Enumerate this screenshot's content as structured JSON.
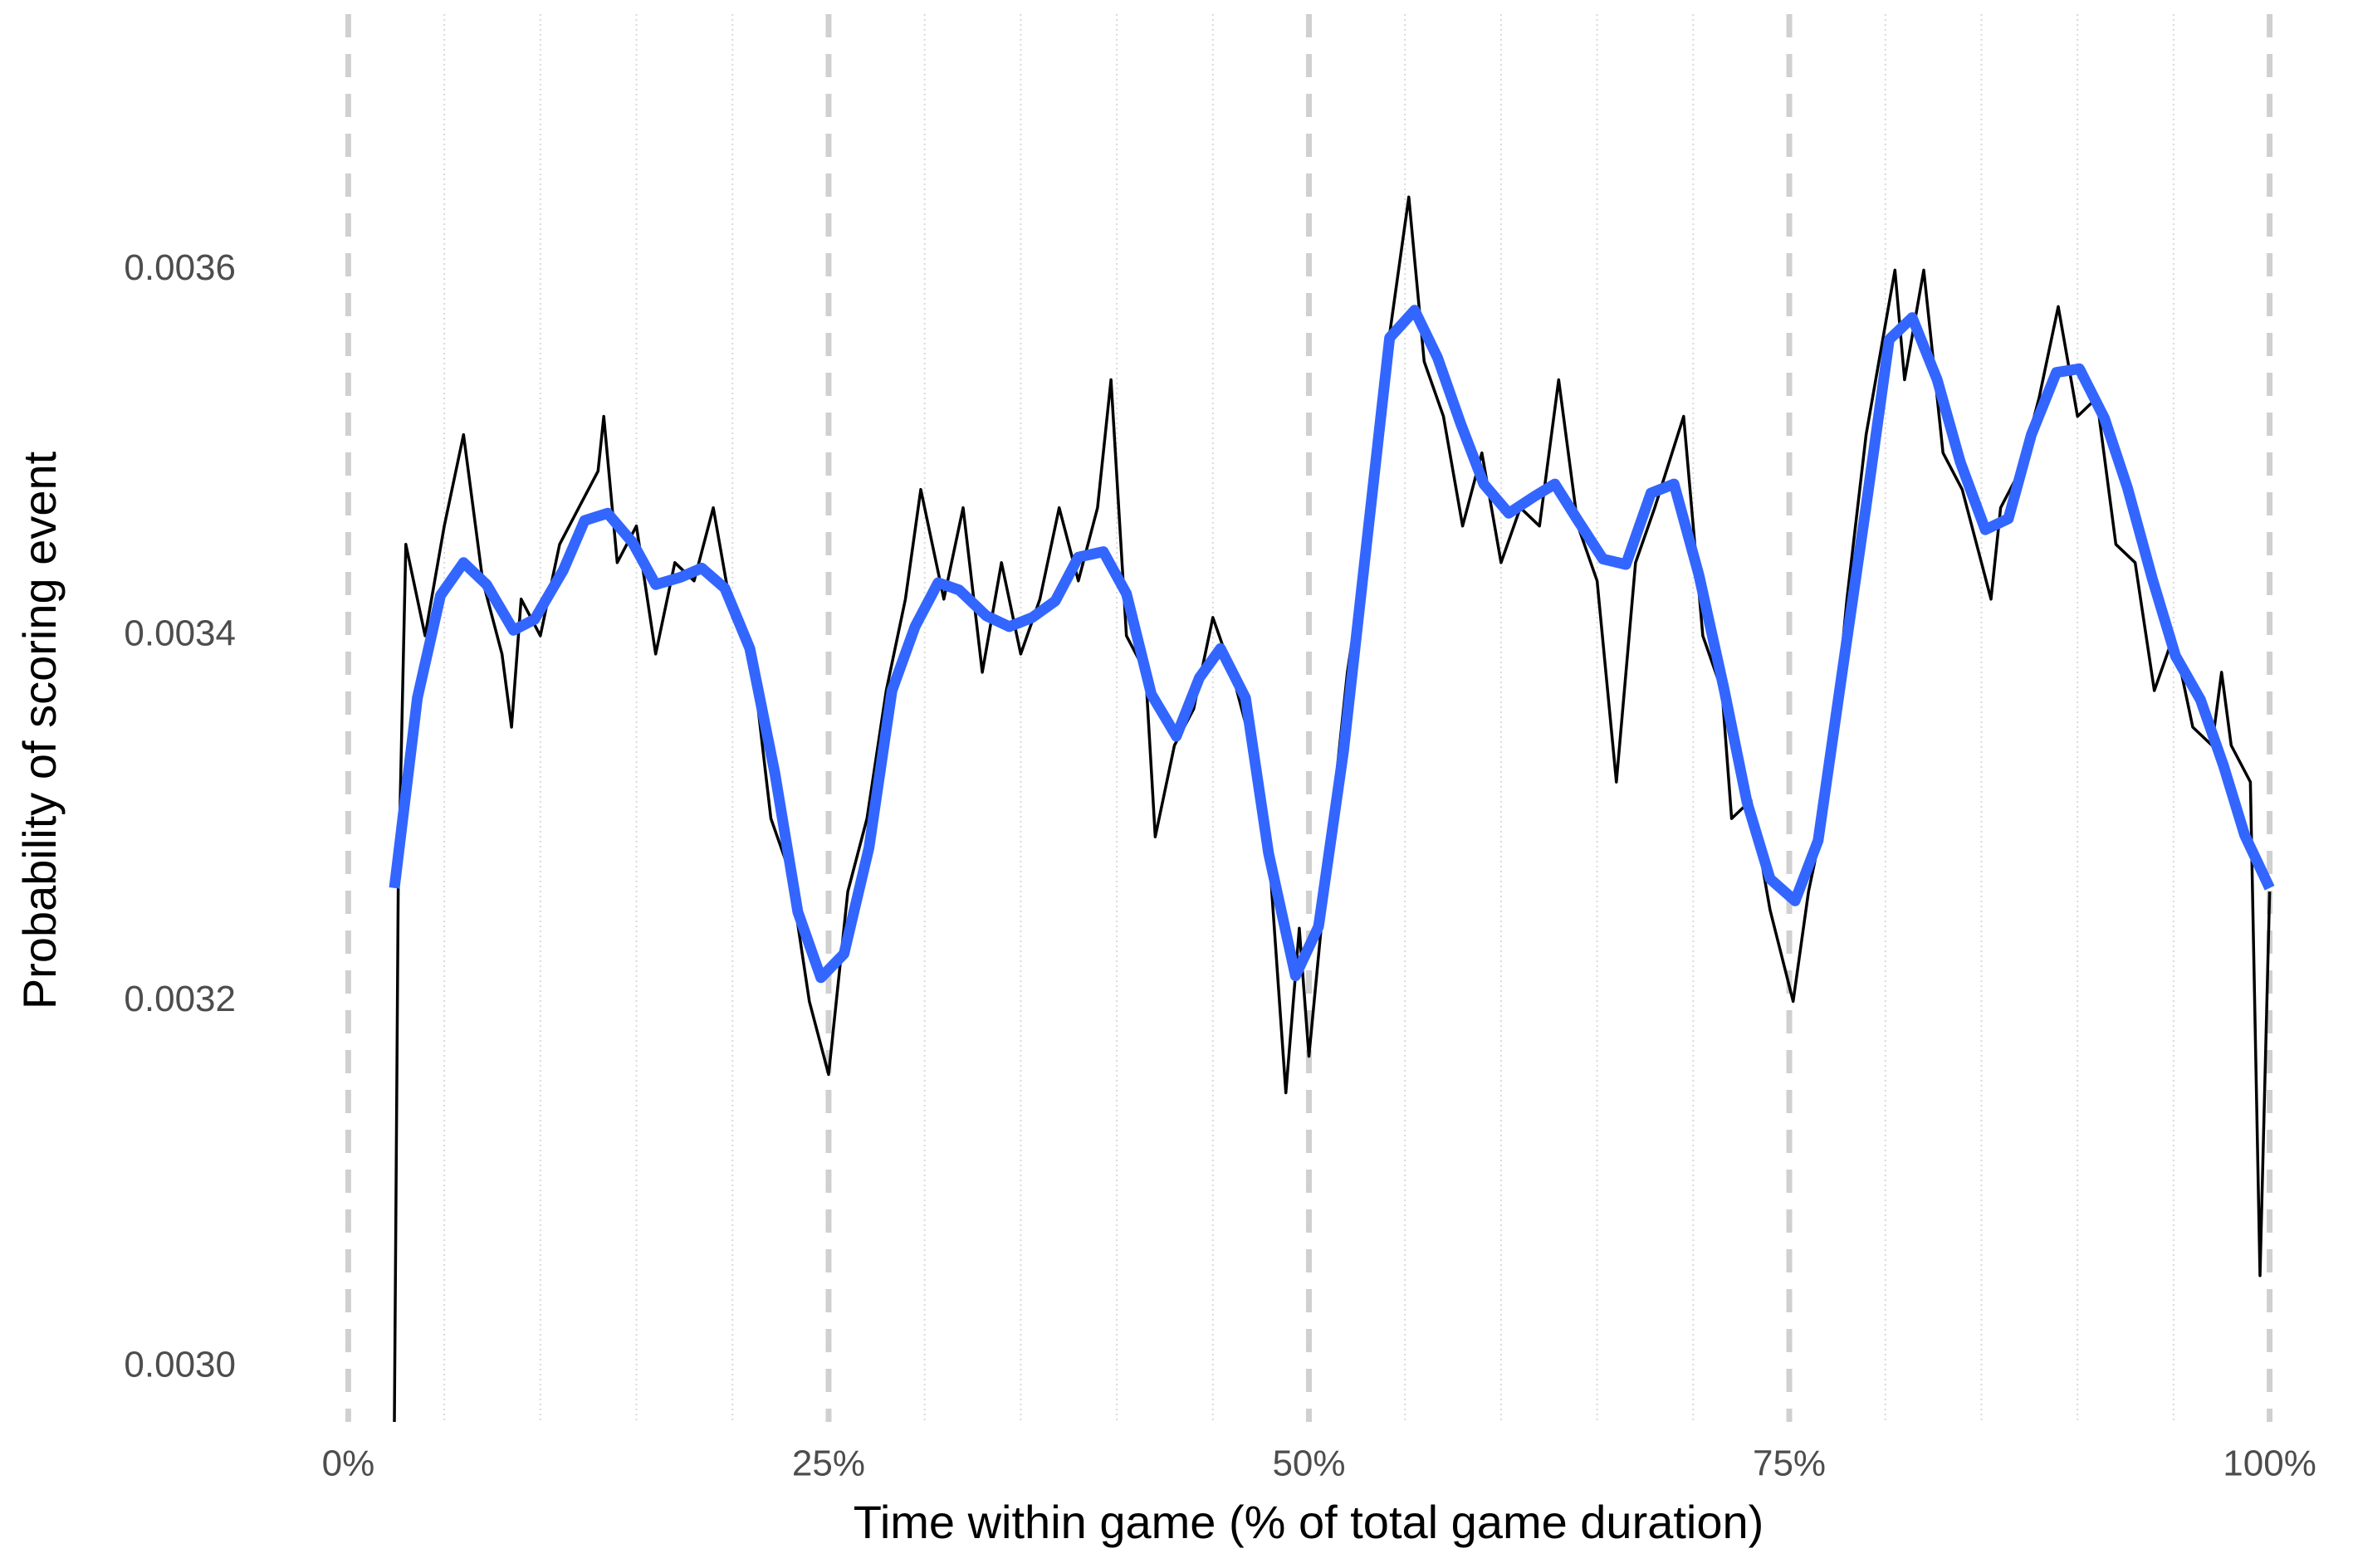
{
  "chart_data": {
    "type": "line",
    "xlabel": "Time within game (% of total game duration)",
    "ylabel": "Probability of scoring event",
    "xlim": [
      -3,
      103
    ],
    "ylim": [
      0.00297,
      0.00374
    ],
    "xticks": [
      {
        "value": 0,
        "label": "0%"
      },
      {
        "value": 25,
        "label": "25%"
      },
      {
        "value": 50,
        "label": "50%"
      },
      {
        "value": 75,
        "label": "75%"
      },
      {
        "value": 100,
        "label": "100%"
      }
    ],
    "xminorticks": [
      5,
      10,
      15,
      20,
      30,
      35,
      40,
      45,
      55,
      60,
      65,
      70,
      80,
      85,
      90,
      95
    ],
    "yticks": [
      {
        "value": 0.003,
        "label": "0.0030"
      },
      0.0032,
      0.0034,
      0.0036
    ],
    "grid": true,
    "series": [
      {
        "color": "#000000",
        "x": [
          2.4,
          2.6,
          3,
          4,
          5,
          6,
          7,
          8,
          8.5,
          9,
          10,
          11,
          12,
          13,
          13.3,
          14,
          15,
          16,
          17,
          18,
          19,
          20,
          21,
          22,
          23,
          24,
          25,
          26,
          27,
          28,
          29,
          29.8,
          31,
          32,
          33,
          34,
          35,
          36,
          37,
          38,
          39,
          39.7,
          40.5,
          41.5,
          42,
          43,
          44,
          45,
          46,
          47,
          48,
          48.8,
          49.5,
          50,
          51,
          52,
          53,
          54,
          55.2,
          56,
          57,
          58,
          59,
          60,
          61,
          62,
          63,
          64,
          65,
          66,
          67,
          68,
          69.5,
          70.5,
          71.5,
          72,
          73,
          74,
          75.2,
          76,
          77,
          78,
          79,
          80,
          80.5,
          81,
          82,
          83,
          84,
          85,
          85.5,
          86,
          87,
          88,
          89,
          90,
          91,
          92,
          93,
          94,
          95,
          96,
          97,
          97.5,
          98,
          99,
          99.5,
          100
        ],
        "values": [
          0.00297,
          0.00326,
          0.00345,
          0.0034,
          0.00346,
          0.00351,
          0.00343,
          0.00339,
          0.00335,
          0.00342,
          0.0034,
          0.00345,
          0.00347,
          0.00349,
          0.00352,
          0.00344,
          0.00346,
          0.00339,
          0.00344,
          0.00343,
          0.00347,
          0.00341,
          0.00339,
          0.0033,
          0.00327,
          0.0032,
          0.00316,
          0.00326,
          0.0033,
          0.00337,
          0.00342,
          0.00348,
          0.00342,
          0.00347,
          0.00338,
          0.00344,
          0.00339,
          0.00342,
          0.00347,
          0.00343,
          0.00347,
          0.00354,
          0.0034,
          0.00338,
          0.00329,
          0.00334,
          0.00336,
          0.00341,
          0.00338,
          0.00334,
          0.00327,
          0.00315,
          0.00324,
          0.00317,
          0.00328,
          0.00338,
          0.00345,
          0.00355,
          0.00364,
          0.00355,
          0.00352,
          0.00346,
          0.0035,
          0.00344,
          0.00347,
          0.00346,
          0.00354,
          0.00346,
          0.00343,
          0.00332,
          0.00344,
          0.00347,
          0.00352,
          0.0034,
          0.00337,
          0.0033,
          0.00331,
          0.00325,
          0.0032,
          0.00326,
          0.00331,
          0.00342,
          0.00351,
          0.00357,
          0.0036,
          0.00354,
          0.0036,
          0.0035,
          0.00348,
          0.00344,
          0.00342,
          0.00347,
          0.00349,
          0.00353,
          0.00358,
          0.00352,
          0.00353,
          0.00345,
          0.00344,
          0.00337,
          0.0034,
          0.00335,
          0.00334,
          0.00338,
          0.00334,
          0.00332,
          0.00305,
          0.00326
        ]
      },
      {
        "color": "#3366ff",
        "x": [
          2.4,
          3.6,
          4.8,
          6.0,
          7.2,
          8.6,
          9.7,
          11.2,
          12.3,
          13.5,
          14.8,
          16.0,
          17.3,
          18.4,
          19.6,
          20.9,
          22.2,
          23.4,
          24.6,
          25.8,
          27.1,
          28.3,
          29.5,
          30.7,
          31.8,
          33.2,
          34.4,
          35.6,
          36.8,
          38.0,
          39.3,
          40.5,
          41.8,
          43.1,
          44.3,
          45.4,
          46.7,
          47.9,
          49.3,
          50.5,
          51.8,
          53.0,
          54.2,
          55.5,
          56.7,
          57.9,
          59.1,
          60.4,
          61.7,
          62.8,
          64.0,
          65.3,
          66.5,
          67.8,
          69.0,
          70.3,
          71.6,
          72.8,
          74.0,
          75.3,
          76.5,
          77.7,
          79.0,
          80.2,
          81.4,
          82.7,
          83.9,
          85.2,
          86.4,
          87.6,
          88.9,
          90.1,
          91.4,
          92.6,
          93.9,
          95.1,
          96.4,
          97.6,
          98.7,
          100
        ],
        "values": [
          0.003262,
          0.003366,
          0.003422,
          0.00344,
          0.003428,
          0.003403,
          0.003409,
          0.003436,
          0.003463,
          0.003467,
          0.003451,
          0.003428,
          0.003432,
          0.003437,
          0.003426,
          0.003393,
          0.003325,
          0.003249,
          0.003213,
          0.003226,
          0.003284,
          0.00337,
          0.003405,
          0.003429,
          0.003425,
          0.003411,
          0.003405,
          0.00341,
          0.003419,
          0.003443,
          0.003446,
          0.003423,
          0.003368,
          0.003345,
          0.003377,
          0.003393,
          0.003366,
          0.003281,
          0.003214,
          0.003241,
          0.003337,
          0.00345,
          0.003563,
          0.003578,
          0.003552,
          0.003516,
          0.003483,
          0.003467,
          0.003476,
          0.003483,
          0.003463,
          0.003442,
          0.003439,
          0.003478,
          0.003483,
          0.003433,
          0.003371,
          0.003309,
          0.003267,
          0.003255,
          0.003288,
          0.003376,
          0.003471,
          0.003562,
          0.003574,
          0.00354,
          0.003495,
          0.003458,
          0.003464,
          0.00351,
          0.003544,
          0.003546,
          0.003519,
          0.003481,
          0.003431,
          0.003389,
          0.003365,
          0.003329,
          0.003291,
          0.003262
        ]
      }
    ]
  }
}
